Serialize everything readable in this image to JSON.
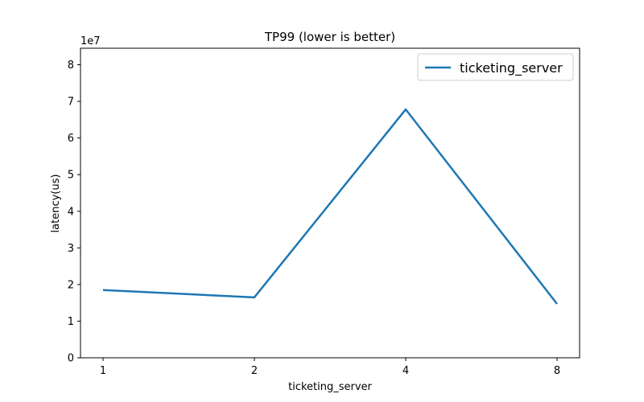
{
  "chart_data": {
    "type": "line",
    "title": "TP99 (lower is better)",
    "xlabel": "ticketing_server",
    "ylabel": "latency(us)",
    "y_scale_label": "1e7",
    "categories": [
      "1",
      "2",
      "4",
      "8"
    ],
    "series": [
      {
        "name": "ticketing_server",
        "color": "#1f77b4",
        "values": [
          18500000,
          16500000,
          67800000,
          14700000
        ]
      }
    ],
    "ylim": [
      0,
      84500000
    ],
    "y_ticks": [
      0,
      10000000,
      20000000,
      30000000,
      40000000,
      50000000,
      60000000,
      70000000,
      80000000
    ],
    "y_tick_labels": [
      "0",
      "1",
      "2",
      "3",
      "4",
      "5",
      "6",
      "7",
      "8"
    ],
    "grid": false,
    "legend_position": "top-right"
  }
}
